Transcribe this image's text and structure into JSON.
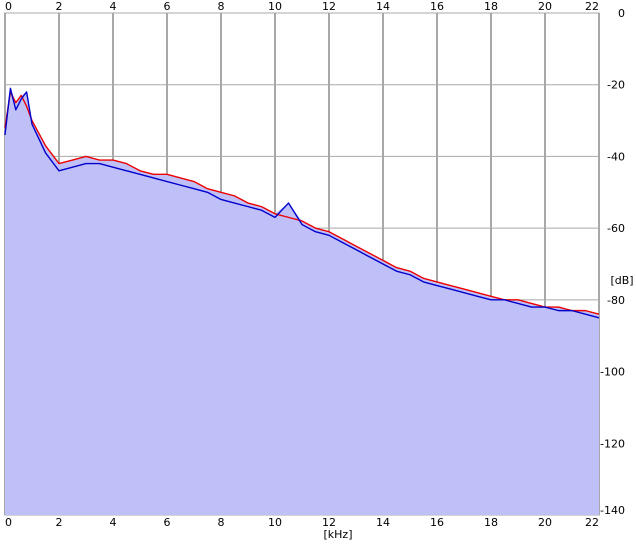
{
  "colors": {
    "background": "#ffffff",
    "plot_background": "#ffffff",
    "grid": "#a8a8a8",
    "fill": "#c0c0f8",
    "series_red": "#ee0000",
    "series_blue": "#0000cc",
    "axis": "#808080"
  },
  "chart_data": {
    "type": "line",
    "title": "",
    "xlabel": "[kHz]",
    "ylabel": "[dB]",
    "xlim": [
      0,
      22
    ],
    "ylim": [
      -140,
      0
    ],
    "x_ticks": [
      0,
      2,
      4,
      6,
      8,
      10,
      12,
      14,
      16,
      18,
      20,
      22
    ],
    "x_tick_labels": [
      "0",
      "2",
      "4",
      "6",
      "8",
      "10",
      "12",
      "14",
      "16",
      "18",
      "20",
      "22"
    ],
    "y_ticks": [
      0,
      -20,
      -40,
      -60,
      -80,
      -100,
      -120,
      -140
    ],
    "y_tick_labels": [
      "0",
      "-20",
      "-40",
      "-60",
      "-80",
      "-100",
      "-120",
      "-140"
    ],
    "grid": true,
    "legend": "none",
    "fill_under": true,
    "series": [
      {
        "color": "#ee0000",
        "x": [
          0,
          0.2,
          0.4,
          0.6,
          0.8,
          1.0,
          1.5,
          2.0,
          2.5,
          3.0,
          3.5,
          4.0,
          4.5,
          5.0,
          5.5,
          6.0,
          6.5,
          7.0,
          7.5,
          8.0,
          8.5,
          9.0,
          9.5,
          10.0,
          10.5,
          11.0,
          11.5,
          12.0,
          12.5,
          13.0,
          13.5,
          14.0,
          14.5,
          15.0,
          15.5,
          16.0,
          16.5,
          17.0,
          17.5,
          18.0,
          18.5,
          19.0,
          19.5,
          20.0,
          20.5,
          21.0,
          21.5,
          22.0
        ],
        "y": [
          -32,
          -22,
          -25,
          -23,
          -26,
          -30,
          -37,
          -42,
          -41,
          -40,
          -41,
          -41,
          -42,
          -44,
          -45,
          -45,
          -46,
          -47,
          -49,
          -50,
          -51,
          -53,
          -54,
          -56,
          -57,
          -58,
          -60,
          -61,
          -63,
          -65,
          -67,
          -69,
          -71,
          -72,
          -74,
          -75,
          -76,
          -77,
          -78,
          -79,
          -80,
          -80,
          -81,
          -82,
          -82,
          -83,
          -83,
          -84
        ]
      },
      {
        "color": "#0000cc",
        "x": [
          0,
          0.2,
          0.4,
          0.6,
          0.8,
          1.0,
          1.5,
          2.0,
          2.5,
          3.0,
          3.5,
          4.0,
          4.5,
          5.0,
          5.5,
          6.0,
          6.5,
          7.0,
          7.5,
          8.0,
          8.5,
          9.0,
          9.5,
          10.0,
          10.5,
          11.0,
          11.5,
          12.0,
          12.5,
          13.0,
          13.5,
          14.0,
          14.5,
          15.0,
          15.5,
          16.0,
          16.5,
          17.0,
          17.5,
          18.0,
          18.5,
          19.0,
          19.5,
          20.0,
          20.5,
          21.0,
          21.5,
          22.0
        ],
        "y": [
          -34,
          -21,
          -27,
          -24,
          -22,
          -31,
          -39,
          -44,
          -43,
          -42,
          -42,
          -43,
          -44,
          -45,
          -46,
          -47,
          -48,
          -49,
          -50,
          -52,
          -53,
          -54,
          -55,
          -57,
          -53,
          -59,
          -61,
          -62,
          -64,
          -66,
          -68,
          -70,
          -72,
          -73,
          -75,
          -76,
          -77,
          -78,
          -79,
          -80,
          -80,
          -81,
          -82,
          -82,
          -83,
          -83,
          -84,
          -85
        ]
      }
    ]
  }
}
